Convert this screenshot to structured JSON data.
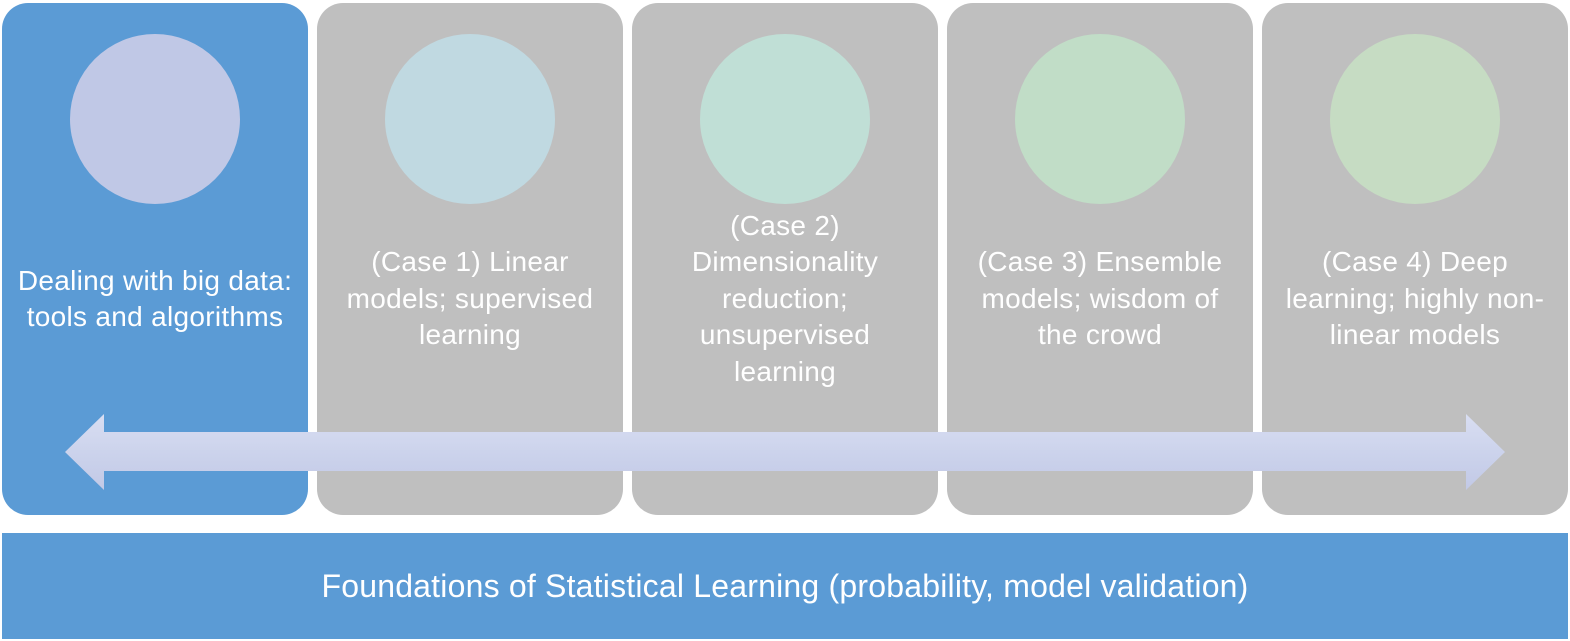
{
  "cards": [
    {
      "label": "Dealing with big data: tools and algorithms",
      "active": true,
      "circle_color": "#c0c8e6"
    },
    {
      "label": "(Case 1) Linear models; supervised learning",
      "active": false,
      "circle_color": "#c0d9e1"
    },
    {
      "label": "(Case 2) Dimensionality reduction; unsupervised learning",
      "active": false,
      "circle_color": "#c0dfd6"
    },
    {
      "label": "(Case 3) Ensemble models; wisdom of the crowd",
      "active": false,
      "circle_color": "#c1ddc7"
    },
    {
      "label": "(Case 4) Deep learning; highly non-linear models",
      "active": false,
      "circle_color": "#c6dcc3"
    }
  ],
  "foundation": {
    "label": "Foundations of Statistical Learning (probability, model validation)"
  },
  "colors": {
    "active_card": "#5b9bd5",
    "inactive_card": "#bfbfbf",
    "arrow": "#cfd5ec",
    "foundation_bar": "#5b9bd5"
  }
}
